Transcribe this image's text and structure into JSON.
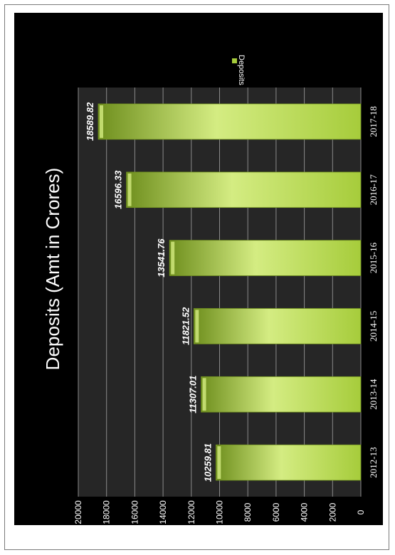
{
  "chart_data": {
    "type": "bar",
    "title": "Deposits (Amt in Crores)",
    "categories": [
      "2012-13",
      "2013-14",
      "2014-15",
      "2015-16",
      "2016-17",
      "2017-18"
    ],
    "series": [
      {
        "name": "Deposits",
        "values": [
          10259.81,
          11307.01,
          11821.52,
          13541.76,
          16596.33,
          18589.82
        ]
      }
    ],
    "value_labels": [
      "10259.81",
      "11307.01",
      "11821.52",
      "13541.76",
      "16596.33",
      "18589.82"
    ],
    "ylim": [
      0,
      20000
    ],
    "y_ticks": [
      "0",
      "2000",
      "4000",
      "6000",
      "8000",
      "10000",
      "12000",
      "14000",
      "16000",
      "18000",
      "20000"
    ],
    "grid": true,
    "legend_position": "right",
    "orientation": "rotated-90-cw",
    "colors": {
      "bar": "#a6cc3b",
      "bar_light": "#d4ec82",
      "bar_dark": "#6f8f1e",
      "plot_bg": "#262626",
      "grid": "#8a8a8a"
    }
  }
}
